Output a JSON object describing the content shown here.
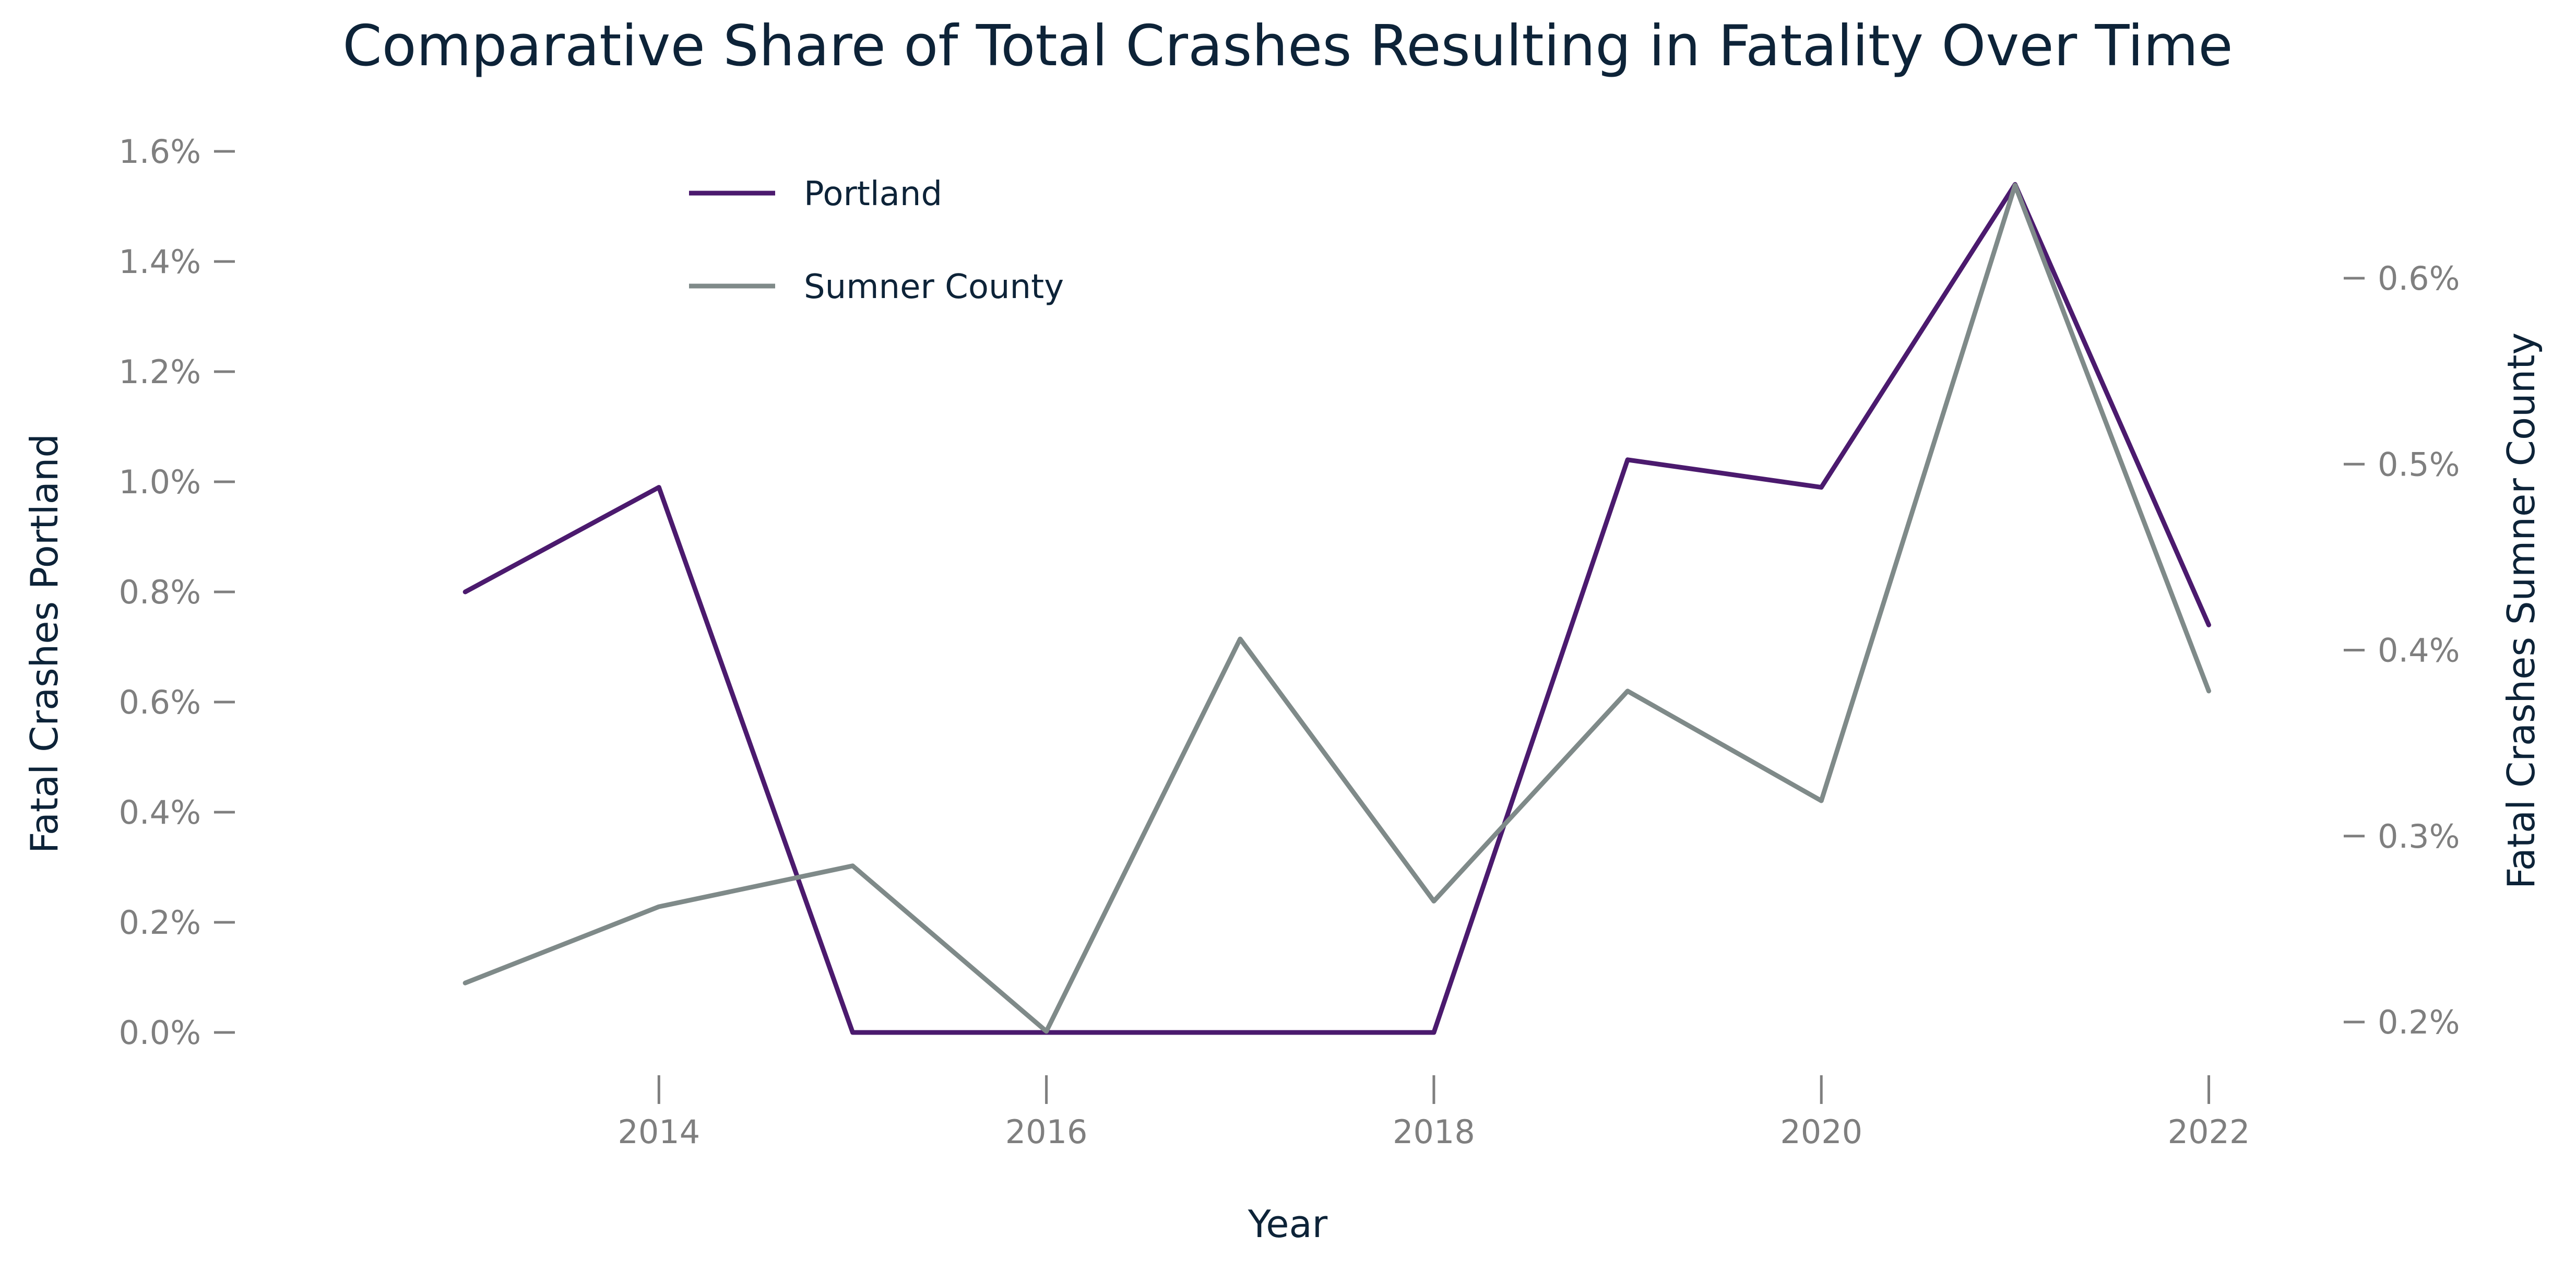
{
  "chart_data": {
    "type": "line",
    "title": "Comparative Share of Total Crashes Resulting in Fatality Over Time",
    "xlabel": "Year",
    "ylabel_left": "Fatal Crashes Portland",
    "ylabel_right": "Fatal Crashes Sumner County",
    "x": [
      2013,
      2014,
      2015,
      2016,
      2017,
      2018,
      2019,
      2020,
      2021,
      2022
    ],
    "x_ticks": [
      2014,
      2016,
      2018,
      2020,
      2022
    ],
    "x_tick_labels": [
      "2014",
      "2016",
      "2018",
      "2020",
      "2022"
    ],
    "xlim": [
      2012.0,
      2022.4
    ],
    "ylim_left": [
      0,
      1.6
    ],
    "y_left_ticks": [
      0,
      0.2,
      0.4,
      0.6,
      0.8,
      1.0,
      1.2,
      1.4,
      1.6
    ],
    "y_left_tick_labels": [
      "0.0%",
      "0.2%",
      "0.4%",
      "0.6%",
      "0.8%",
      "1.0%",
      "1.2%",
      "1.4%",
      "1.6%"
    ],
    "ylim_right": [
      0.2,
      0.6
    ],
    "y_right_ticks": [
      0.2,
      0.3,
      0.4,
      0.5,
      0.6
    ],
    "y_right_tick_labels": [
      "0.2%",
      "0.3%",
      "0.4%",
      "0.5%",
      "0.6%"
    ],
    "grid": false,
    "legend_position": "top-left",
    "series": [
      {
        "name": "Portland",
        "axis": "left",
        "color": "#4b1a6e",
        "values": [
          0.8,
          0.99,
          0.0,
          0.0,
          0.0,
          0.0,
          1.04,
          0.99,
          1.54,
          0.74
        ]
      },
      {
        "name": "Sumner County",
        "axis": "right",
        "color": "#7f8a89",
        "values": [
          0.221,
          0.262,
          0.284,
          0.195,
          0.406,
          0.265,
          0.378,
          0.319,
          0.65,
          0.378
        ]
      }
    ]
  }
}
